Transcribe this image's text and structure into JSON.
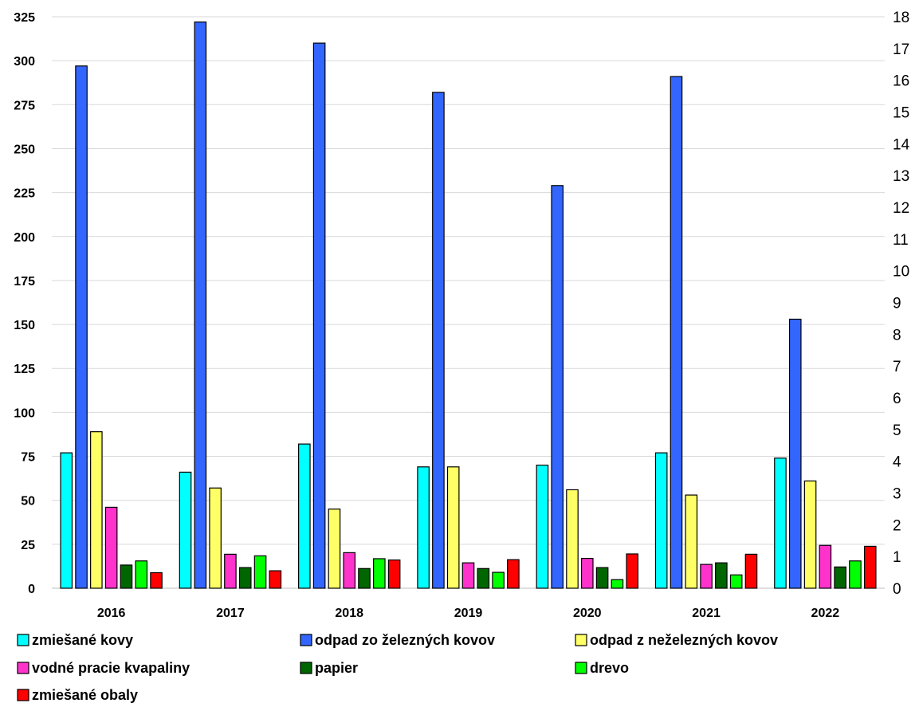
{
  "chart_data": {
    "type": "bar",
    "title": "",
    "xlabel": "",
    "ylabel": "",
    "categories": [
      "2016",
      "2017",
      "2018",
      "2019",
      "2020",
      "2021",
      "2022"
    ],
    "ylim": [
      0,
      325
    ],
    "yticks": [
      0,
      25,
      50,
      75,
      100,
      125,
      150,
      175,
      200,
      225,
      250,
      275,
      300,
      325
    ],
    "y2lim": [
      0,
      18
    ],
    "y2ticks": [
      0,
      1,
      2,
      3,
      4,
      5,
      6,
      7,
      8,
      9,
      10,
      11,
      12,
      13,
      14,
      15,
      16,
      17,
      18
    ],
    "grid": true,
    "legend_position": "bottom",
    "series": [
      {
        "name": "zmiešané kovy",
        "color": "#00FFFF",
        "axis": "left",
        "values": [
          77,
          66,
          82,
          69,
          70,
          77,
          74
        ]
      },
      {
        "name": "odpad zo železných kovov",
        "color": "#3366FF",
        "axis": "left",
        "values": [
          297,
          322,
          310,
          282,
          229,
          291,
          153
        ]
      },
      {
        "name": "odpad z neželezných kovov",
        "color": "#FFFF66",
        "axis": "left",
        "values": [
          89,
          57,
          45,
          69,
          56,
          53,
          61
        ]
      },
      {
        "name": "vodné pracie kvapaliny",
        "color": "#FF33CC",
        "axis": "right",
        "values": [
          2.55,
          1.07,
          1.12,
          0.8,
          0.94,
          0.75,
          1.35
        ]
      },
      {
        "name": "papier",
        "color": "#006600",
        "axis": "right",
        "values": [
          0.73,
          0.65,
          0.62,
          0.62,
          0.65,
          0.8,
          0.67
        ]
      },
      {
        "name": "drevo",
        "color": "#00FF00",
        "axis": "right",
        "values": [
          0.86,
          1.02,
          0.93,
          0.5,
          0.27,
          0.42,
          0.86
        ]
      },
      {
        "name": "zmiešané obaly",
        "color": "#FF0000",
        "axis": "right",
        "values": [
          0.49,
          0.55,
          0.89,
          0.9,
          1.08,
          1.07,
          1.32
        ]
      }
    ]
  }
}
